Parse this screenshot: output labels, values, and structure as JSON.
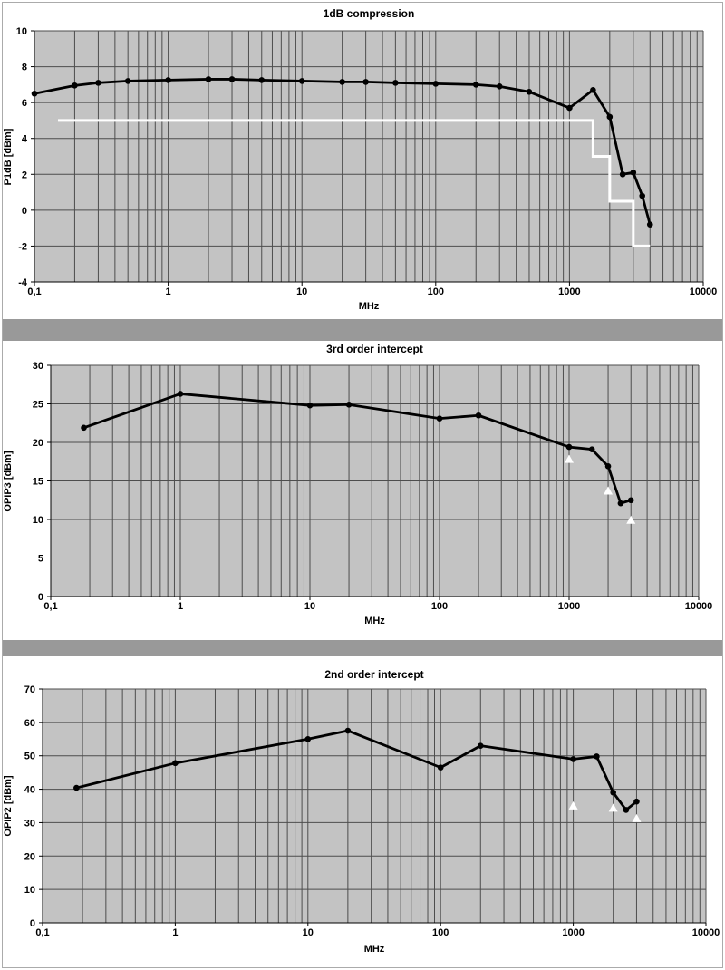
{
  "style": {
    "plot_bg": "#c3c3c3",
    "grid_color": "#4d4d4d",
    "axis_color": "#000000",
    "series_color": "#000000",
    "limit_color": "#ffffff",
    "arrow_color": "#ffffff",
    "separator_color": "#999999",
    "frame_color": "#ababab"
  },
  "chart_data": [
    {
      "type": "line",
      "title": "1dB compression",
      "xlabel": "MHz",
      "ylabel": "P1dB [dBm]",
      "xscale": "log",
      "xlim": [
        0.1,
        10000
      ],
      "ylim": [
        -4,
        10
      ],
      "yticks": [
        10,
        8,
        6,
        4,
        2,
        0,
        -2,
        -4
      ],
      "xtick_values": [
        0.1,
        1,
        10,
        100,
        1000,
        10000
      ],
      "xtick_labels": [
        "0,1",
        "1",
        "10",
        "100",
        "1000",
        "10000"
      ],
      "grid": "on",
      "legend": "none",
      "x": [
        0.1,
        0.2,
        0.3,
        0.5,
        1,
        2,
        3,
        5,
        10,
        20,
        30,
        50,
        100,
        200,
        300,
        500,
        1000,
        1500,
        2000,
        2500,
        3000,
        3500,
        4000
      ],
      "y": [
        6.5,
        6.95,
        7.1,
        7.2,
        7.25,
        7.3,
        7.3,
        7.25,
        7.2,
        7.15,
        7.15,
        7.1,
        7.05,
        7.0,
        6.9,
        6.6,
        5.7,
        6.7,
        5.2,
        2.0,
        2.1,
        0.8,
        -0.8
      ],
      "limit_line": {
        "color": "#ffffff",
        "points": [
          [
            0.15,
            5
          ],
          [
            1500,
            5
          ],
          [
            1500,
            3
          ],
          [
            2000,
            3
          ],
          [
            2000,
            0.5
          ],
          [
            3000,
            0.5
          ],
          [
            3000,
            -2
          ],
          [
            4000,
            -2
          ]
        ]
      },
      "arrows": []
    },
    {
      "type": "line",
      "title": "3rd order intercept",
      "xlabel": "MHz",
      "ylabel": "OPIP3 [dBm]",
      "xscale": "log",
      "xlim": [
        0.1,
        10000
      ],
      "ylim": [
        0,
        30
      ],
      "yticks": [
        30,
        25,
        20,
        15,
        10,
        5,
        0
      ],
      "xtick_values": [
        0.1,
        1,
        10,
        100,
        1000,
        10000
      ],
      "xtick_labels": [
        "0,1",
        "1",
        "10",
        "100",
        "1000",
        "10000"
      ],
      "grid": "on",
      "legend": "none",
      "x": [
        0.18,
        1,
        10,
        20,
        100,
        200,
        1000,
        1500,
        2000,
        2500,
        3000
      ],
      "y": [
        21.9,
        26.3,
        24.8,
        24.9,
        23.1,
        23.5,
        19.4,
        19.1,
        16.9,
        12.1,
        12.5
      ],
      "limit_line": null,
      "arrows": [
        {
          "x": 1000,
          "y_tip": 18.4
        },
        {
          "x": 2000,
          "y_tip": 14.3
        },
        {
          "x": 3000,
          "y_tip": 10.5
        }
      ]
    },
    {
      "type": "line",
      "title": "2nd order intercept",
      "xlabel": "MHz",
      "ylabel": "OPIP2 [dBm]",
      "xscale": "log",
      "xlim": [
        0.1,
        10000
      ],
      "ylim": [
        0,
        70
      ],
      "yticks": [
        70,
        60,
        50,
        40,
        30,
        20,
        10,
        0
      ],
      "xtick_values": [
        0.1,
        1,
        10,
        100,
        1000,
        10000
      ],
      "xtick_labels": [
        "0,1",
        "1",
        "10",
        "100",
        "1000",
        "10000"
      ],
      "grid": "on",
      "legend": "none",
      "x": [
        0.18,
        1,
        10,
        20,
        100,
        200,
        1000,
        1500,
        2000,
        2500,
        3000
      ],
      "y": [
        40.4,
        47.8,
        55.0,
        57.5,
        46.5,
        53.0,
        49.0,
        49.8,
        39.0,
        33.8,
        36.3
      ],
      "limit_line": null,
      "arrows": [
        {
          "x": 1000,
          "y_tip": 36.4
        },
        {
          "x": 2000,
          "y_tip": 35.7
        },
        {
          "x": 3000,
          "y_tip": 32.6
        }
      ]
    }
  ]
}
